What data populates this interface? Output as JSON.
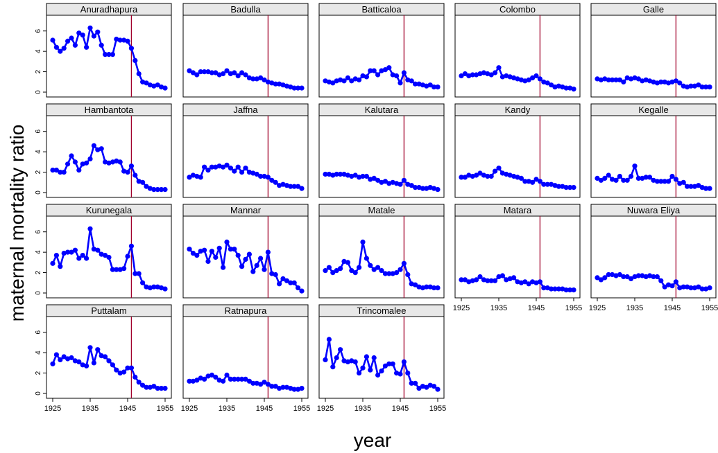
{
  "chart_data": {
    "type": "line",
    "xlabel": "year",
    "ylabel": "maternal mortality ratio",
    "xlim": [
      1925,
      1955
    ],
    "ylim": [
      0,
      7
    ],
    "x_ticks": [
      1925,
      1935,
      1945,
      1955
    ],
    "y_ticks": [
      0,
      2,
      4,
      6
    ],
    "reference_line_x": 1946,
    "colors": {
      "series": "#0000ff",
      "reference_line": "#a0002a",
      "strip_fill": "#e8e8e8"
    },
    "x": [
      1925,
      1926,
      1927,
      1928,
      1929,
      1930,
      1931,
      1932,
      1933,
      1934,
      1935,
      1936,
      1937,
      1938,
      1939,
      1940,
      1941,
      1942,
      1943,
      1944,
      1945,
      1946,
      1947,
      1948,
      1949,
      1950,
      1951,
      1952,
      1953,
      1954,
      1955
    ],
    "panels": [
      {
        "name": "Anuradhapura",
        "values": [
          5.1,
          4.4,
          4.0,
          4.3,
          5.0,
          5.3,
          4.6,
          5.8,
          5.6,
          4.4,
          6.3,
          5.5,
          5.9,
          4.6,
          3.7,
          3.7,
          3.7,
          5.2,
          5.1,
          5.1,
          5.0,
          4.3,
          3.1,
          1.8,
          1.0,
          0.9,
          0.7,
          0.6,
          0.7,
          0.5,
          0.4
        ]
      },
      {
        "name": "Badulla",
        "values": [
          2.1,
          1.9,
          1.7,
          2.0,
          2.0,
          2.0,
          1.9,
          1.9,
          1.7,
          1.8,
          2.1,
          1.8,
          1.9,
          1.6,
          1.9,
          1.7,
          1.4,
          1.3,
          1.3,
          1.4,
          1.2,
          1.0,
          0.9,
          0.8,
          0.8,
          0.7,
          0.6,
          0.5,
          0.4,
          0.4,
          0.4
        ]
      },
      {
        "name": "Batticaloa",
        "values": [
          1.1,
          1.0,
          0.9,
          1.1,
          1.2,
          1.1,
          1.4,
          1.1,
          1.3,
          1.2,
          1.6,
          1.5,
          2.1,
          2.1,
          1.7,
          2.1,
          2.2,
          2.4,
          1.7,
          1.6,
          0.9,
          1.9,
          1.2,
          1.1,
          0.8,
          0.8,
          0.7,
          0.6,
          0.7,
          0.5,
          0.5
        ]
      },
      {
        "name": "Colombo",
        "values": [
          1.6,
          1.8,
          1.6,
          1.7,
          1.7,
          1.8,
          1.9,
          1.8,
          1.7,
          1.9,
          2.4,
          1.5,
          1.6,
          1.5,
          1.4,
          1.3,
          1.2,
          1.1,
          1.2,
          1.4,
          1.6,
          1.3,
          1.0,
          0.9,
          0.7,
          0.5,
          0.6,
          0.5,
          0.4,
          0.4,
          0.3
        ]
      },
      {
        "name": "Galle",
        "values": [
          1.3,
          1.2,
          1.3,
          1.2,
          1.2,
          1.2,
          1.2,
          1.0,
          1.4,
          1.3,
          1.4,
          1.3,
          1.1,
          1.2,
          1.1,
          1.0,
          0.9,
          1.0,
          1.0,
          0.9,
          1.0,
          1.1,
          0.9,
          0.6,
          0.5,
          0.6,
          0.6,
          0.7,
          0.5,
          0.5,
          0.5
        ]
      },
      {
        "name": "Hambantota",
        "values": [
          2.2,
          2.2,
          2.0,
          2.0,
          2.8,
          3.6,
          3.0,
          2.2,
          2.8,
          2.9,
          3.3,
          4.6,
          4.2,
          4.3,
          3.0,
          2.9,
          3.0,
          3.1,
          3.0,
          2.1,
          2.0,
          2.6,
          1.7,
          1.1,
          1.0,
          0.6,
          0.4,
          0.3,
          0.3,
          0.3,
          0.3
        ]
      },
      {
        "name": "Jaffna",
        "values": [
          1.5,
          1.7,
          1.6,
          1.5,
          2.5,
          2.2,
          2.5,
          2.5,
          2.6,
          2.5,
          2.7,
          2.4,
          2.1,
          2.5,
          2.0,
          2.4,
          2.0,
          1.9,
          1.8,
          1.6,
          1.6,
          1.5,
          1.2,
          1.0,
          0.7,
          0.8,
          0.7,
          0.6,
          0.6,
          0.6,
          0.4
        ]
      },
      {
        "name": "Kalutara",
        "values": [
          1.8,
          1.8,
          1.7,
          1.8,
          1.8,
          1.8,
          1.7,
          1.6,
          1.7,
          1.5,
          1.6,
          1.6,
          1.3,
          1.4,
          1.2,
          1.0,
          1.1,
          0.9,
          1.0,
          0.9,
          0.8,
          1.2,
          0.8,
          0.7,
          0.5,
          0.5,
          0.4,
          0.4,
          0.5,
          0.4,
          0.3
        ]
      },
      {
        "name": "Kandy",
        "values": [
          1.5,
          1.5,
          1.7,
          1.6,
          1.7,
          1.9,
          1.7,
          1.6,
          1.6,
          2.1,
          2.4,
          1.9,
          1.8,
          1.7,
          1.6,
          1.5,
          1.4,
          1.1,
          1.1,
          1.0,
          1.3,
          1.1,
          0.8,
          0.8,
          0.8,
          0.7,
          0.6,
          0.6,
          0.5,
          0.5,
          0.5
        ]
      },
      {
        "name": "Kegalle",
        "values": [
          1.4,
          1.2,
          1.4,
          1.7,
          1.3,
          1.2,
          1.6,
          1.2,
          1.2,
          1.6,
          2.6,
          1.4,
          1.4,
          1.5,
          1.5,
          1.2,
          1.1,
          1.1,
          1.1,
          1.1,
          1.6,
          1.3,
          0.9,
          1.0,
          0.6,
          0.6,
          0.6,
          0.7,
          0.5,
          0.4,
          0.4
        ]
      },
      {
        "name": "Kurunegala",
        "values": [
          2.9,
          3.7,
          2.6,
          3.9,
          4.0,
          4.0,
          4.2,
          3.4,
          3.7,
          3.4,
          6.3,
          4.3,
          4.2,
          3.8,
          3.7,
          3.5,
          2.3,
          2.3,
          2.3,
          2.4,
          3.6,
          4.6,
          1.9,
          1.9,
          1.0,
          0.6,
          0.5,
          0.6,
          0.6,
          0.5,
          0.4
        ]
      },
      {
        "name": "Mannar",
        "values": [
          4.3,
          3.9,
          3.7,
          4.1,
          4.2,
          3.1,
          4.1,
          3.5,
          4.4,
          2.5,
          5.0,
          4.3,
          4.3,
          3.7,
          2.6,
          3.3,
          3.8,
          2.1,
          2.7,
          3.4,
          2.3,
          4.0,
          1.9,
          1.8,
          0.9,
          1.4,
          1.2,
          1.0,
          1.0,
          0.5,
          0.2
        ]
      },
      {
        "name": "Matale",
        "values": [
          2.2,
          2.5,
          2.0,
          2.2,
          2.4,
          3.1,
          3.0,
          2.2,
          2.0,
          2.5,
          5.0,
          3.4,
          2.7,
          2.3,
          2.5,
          2.2,
          1.9,
          1.9,
          1.9,
          2.0,
          2.3,
          2.9,
          1.8,
          0.9,
          0.8,
          0.6,
          0.5,
          0.6,
          0.6,
          0.5,
          0.5
        ]
      },
      {
        "name": "Matara",
        "values": [
          1.3,
          1.3,
          1.1,
          1.2,
          1.3,
          1.6,
          1.3,
          1.2,
          1.2,
          1.2,
          1.6,
          1.7,
          1.3,
          1.4,
          1.5,
          1.1,
          1.0,
          1.1,
          0.9,
          1.1,
          1.0,
          1.1,
          0.5,
          0.5,
          0.4,
          0.4,
          0.4,
          0.4,
          0.3,
          0.3,
          0.3
        ]
      },
      {
        "name": "Nuwara Eliya",
        "values": [
          1.5,
          1.3,
          1.5,
          1.8,
          1.8,
          1.7,
          1.8,
          1.6,
          1.6,
          1.4,
          1.6,
          1.7,
          1.7,
          1.6,
          1.7,
          1.6,
          1.6,
          1.2,
          0.6,
          0.8,
          0.7,
          1.1,
          0.5,
          0.6,
          0.6,
          0.5,
          0.5,
          0.6,
          0.4,
          0.4,
          0.5
        ]
      },
      {
        "name": "Puttalam",
        "values": [
          2.9,
          3.8,
          3.3,
          3.6,
          3.4,
          3.5,
          3.2,
          3.1,
          2.8,
          2.7,
          4.5,
          3.0,
          4.3,
          3.7,
          3.6,
          3.2,
          2.8,
          2.3,
          2.0,
          2.1,
          2.5,
          2.5,
          1.6,
          1.1,
          0.8,
          0.6,
          0.6,
          0.7,
          0.5,
          0.5,
          0.5
        ]
      },
      {
        "name": "Ratnapura",
        "values": [
          1.2,
          1.2,
          1.3,
          1.5,
          1.4,
          1.7,
          1.8,
          1.6,
          1.3,
          1.2,
          1.8,
          1.4,
          1.4,
          1.4,
          1.4,
          1.4,
          1.2,
          1.0,
          1.0,
          0.9,
          1.1,
          0.9,
          0.7,
          0.7,
          0.5,
          0.6,
          0.6,
          0.5,
          0.4,
          0.4,
          0.5
        ]
      },
      {
        "name": "Trincomalee",
        "values": [
          3.3,
          5.3,
          2.6,
          3.5,
          4.3,
          3.2,
          3.1,
          3.2,
          3.1,
          2.0,
          2.5,
          3.6,
          2.3,
          3.5,
          1.8,
          2.2,
          2.7,
          2.9,
          2.9,
          2.0,
          1.9,
          3.1,
          2.0,
          1.0,
          1.0,
          0.5,
          0.7,
          0.6,
          0.8,
          0.7,
          0.4
        ]
      }
    ]
  }
}
